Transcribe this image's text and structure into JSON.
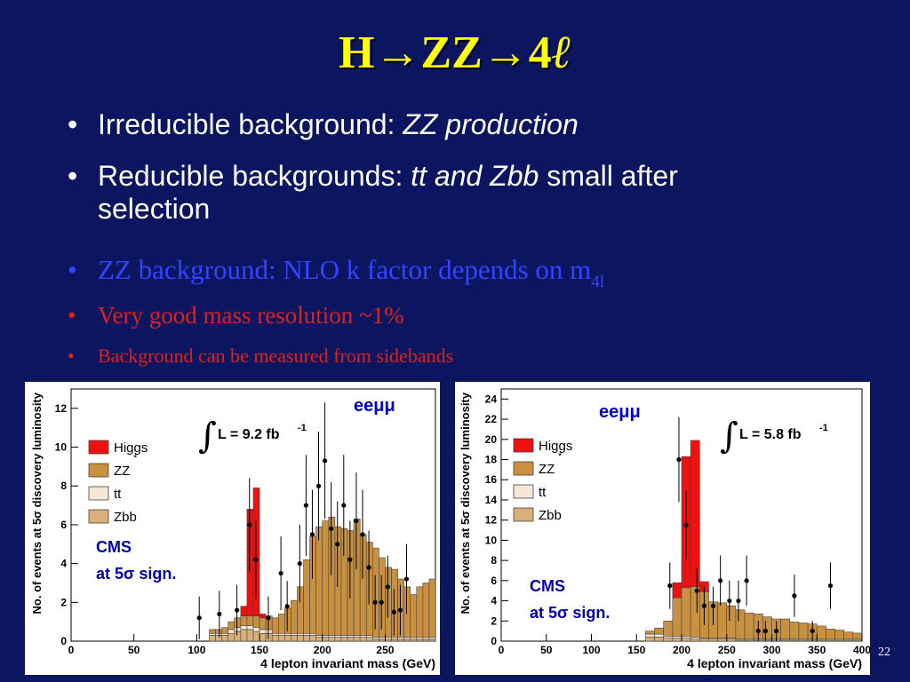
{
  "slide": {
    "title_prefix": "H→ZZ→4",
    "title_ell": "ℓ",
    "bullet_symbol": "•",
    "bullets": [
      {
        "plain": "Irreducible background: ",
        "italic": "ZZ production"
      },
      {
        "plain": "Reducible backgrounds: ",
        "italic": "tt and Zbb",
        "plain2": " small after",
        "line2": "selection"
      },
      {
        "plain": "ZZ background: NLO k factor depends on m",
        "sub": "4l"
      },
      {
        "plain": "Very good mass   resolution ~1%"
      },
      {
        "plain": "Background can be measured from sidebands"
      }
    ],
    "page_number": "22"
  },
  "colors": {
    "background": "#0c1660",
    "title": "#ffff00",
    "higgs": "#ee1111",
    "zz": "#c89142",
    "tt": "#f5e6d6",
    "zbb": "#d9b07a"
  },
  "chart_data": [
    {
      "type": "bar",
      "channel": "eeμμ",
      "lumi": "L = 9.2 fb",
      "lumi_exp": "-1",
      "cms": "CMS",
      "cms2": "at 5σ sign.",
      "xlabel": "4 lepton invariant mass (GeV)",
      "ylabel": "No. of events at 5σ discovery luminosity",
      "xlim": [
        0,
        290
      ],
      "ylim": [
        0,
        13
      ],
      "xticks": [
        0,
        50,
        100,
        150,
        200,
        250
      ],
      "yticks": [
        0,
        2,
        4,
        6,
        8,
        10,
        12
      ],
      "legend": [
        {
          "name": "Higgs",
          "color": "#ee1111"
        },
        {
          "name": "ZZ",
          "sup": "*",
          "color": "#c89142"
        },
        {
          "name": "tt",
          "color": "#f5e6d6"
        },
        {
          "name": "Zbb",
          "color": "#d9b07a"
        }
      ],
      "bin_edges": [
        110,
        115,
        120,
        125,
        130,
        135,
        140,
        145,
        150,
        155,
        160,
        165,
        170,
        175,
        180,
        185,
        190,
        195,
        200,
        205,
        210,
        215,
        220,
        225,
        230,
        235,
        240,
        245,
        250,
        255,
        260,
        265,
        270,
        275,
        280,
        285,
        290
      ],
      "stack": {
        "zbb": [
          0.3,
          0.3,
          0.3,
          0.4,
          0.5,
          0.6,
          0.6,
          0.5,
          0.4,
          0.4,
          0.3,
          0.3,
          0.3,
          0.3,
          0.3,
          0.3,
          0.3,
          0.2,
          0.2,
          0.2,
          0.2,
          0.2,
          0.2,
          0.2,
          0.2,
          0.2,
          0.1,
          0.1,
          0.1,
          0.1,
          0.1,
          0.1,
          0.1,
          0.1,
          0.1,
          0.1
        ],
        "tt": [
          0.1,
          0.1,
          0.1,
          0.2,
          0.2,
          0.2,
          0.2,
          0.2,
          0.2,
          0.2,
          0.1,
          0.1,
          0.1,
          0.1,
          0.1,
          0.1,
          0.1,
          0.1,
          0.1,
          0.1,
          0.1,
          0.1,
          0.1,
          0.1,
          0.1,
          0.1,
          0.1,
          0.1,
          0.1,
          0.1,
          0.1,
          0.1,
          0.1,
          0.1,
          0.1,
          0.1
        ],
        "zz": [
          0.2,
          0.2,
          0.3,
          0.4,
          0.5,
          0.5,
          0.5,
          0.6,
          0.6,
          0.7,
          0.8,
          1.0,
          1.3,
          1.7,
          2.4,
          3.8,
          5.0,
          5.6,
          5.9,
          6.1,
          5.6,
          5.5,
          5.4,
          6.0,
          5.2,
          4.8,
          4.6,
          4.1,
          3.6,
          3.5,
          3.0,
          2.6,
          2.2,
          2.6,
          2.8,
          3.0
        ],
        "higgs": [
          0,
          0,
          0,
          0,
          0,
          0.5,
          5.5,
          6.6,
          0.2,
          0,
          0,
          0,
          0,
          0,
          0,
          0,
          0,
          0,
          0,
          0,
          0,
          0,
          0,
          0,
          0,
          0,
          0,
          0,
          0,
          0,
          0,
          0,
          0,
          0,
          0,
          0
        ]
      },
      "points": [
        {
          "x": 102,
          "y": 1.2,
          "e": 1.1
        },
        {
          "x": 118,
          "y": 1.4,
          "e": 1.2
        },
        {
          "x": 132,
          "y": 1.6,
          "e": 1.3
        },
        {
          "x": 142,
          "y": 6.0,
          "e": 2.4
        },
        {
          "x": 147,
          "y": 4.2,
          "e": 2.0
        },
        {
          "x": 157,
          "y": 1.2,
          "e": 1.1
        },
        {
          "x": 167,
          "y": 3.5,
          "e": 1.9
        },
        {
          "x": 172,
          "y": 1.8,
          "e": 1.3
        },
        {
          "x": 182,
          "y": 4.0,
          "e": 2.0
        },
        {
          "x": 187,
          "y": 7.0,
          "e": 2.6
        },
        {
          "x": 192,
          "y": 5.5,
          "e": 2.3
        },
        {
          "x": 197,
          "y": 8.0,
          "e": 2.8
        },
        {
          "x": 202,
          "y": 9.3,
          "e": 3.0
        },
        {
          "x": 207,
          "y": 5.8,
          "e": 2.4
        },
        {
          "x": 212,
          "y": 5.0,
          "e": 2.2
        },
        {
          "x": 217,
          "y": 7.0,
          "e": 2.6
        },
        {
          "x": 222,
          "y": 4.2,
          "e": 2.0
        },
        {
          "x": 227,
          "y": 6.2,
          "e": 2.5
        },
        {
          "x": 232,
          "y": 5.5,
          "e": 2.3
        },
        {
          "x": 237,
          "y": 3.8,
          "e": 1.9
        },
        {
          "x": 242,
          "y": 2.0,
          "e": 1.4
        },
        {
          "x": 247,
          "y": 2.0,
          "e": 1.4
        },
        {
          "x": 252,
          "y": 2.8,
          "e": 1.6
        },
        {
          "x": 257,
          "y": 1.5,
          "e": 1.2
        },
        {
          "x": 262,
          "y": 1.6,
          "e": 1.3
        },
        {
          "x": 267,
          "y": 3.2,
          "e": 1.8
        }
      ]
    },
    {
      "type": "bar",
      "channel": "eeμμ",
      "lumi": "L = 5.8 fb",
      "lumi_exp": "-1",
      "cms": "CMS",
      "cms2": "at 5σ sign.",
      "xlabel": "4 lepton invariant mass (GeV)",
      "ylabel": "No. of events at 5σ discovery luminosity",
      "xlim": [
        0,
        400
      ],
      "ylim": [
        0,
        25
      ],
      "xticks": [
        0,
        50,
        100,
        150,
        200,
        250,
        300,
        350,
        400
      ],
      "yticks": [
        0,
        2,
        4,
        6,
        8,
        10,
        12,
        14,
        16,
        18,
        20,
        22,
        24
      ],
      "legend": [
        {
          "name": "Higgs",
          "color": "#ee1111"
        },
        {
          "name": "ZZ",
          "sup": "*",
          "color": "#c89142"
        },
        {
          "name": "tt",
          "color": "#f5e6d6"
        },
        {
          "name": "Zbb",
          "color": "#d9b07a"
        }
      ],
      "bin_edges": [
        160,
        170,
        180,
        190,
        200,
        210,
        220,
        230,
        240,
        250,
        260,
        270,
        280,
        290,
        300,
        310,
        320,
        330,
        340,
        350,
        360,
        370,
        380,
        390,
        400
      ],
      "stack": {
        "zbb": [
          0.4,
          0.4,
          0.3,
          0.3,
          0.3,
          0.2,
          0.2,
          0.2,
          0.2,
          0.2,
          0.1,
          0.1,
          0.1,
          0.1,
          0.1,
          0.1,
          0.1,
          0.1,
          0.1,
          0.1,
          0.1,
          0.1,
          0.1,
          0.1
        ],
        "tt": [
          0.3,
          0.3,
          0.2,
          0.2,
          0.2,
          0.2,
          0.1,
          0.1,
          0.1,
          0.1,
          0.1,
          0.1,
          0.1,
          0.1,
          0.1,
          0.1,
          0.1,
          0.1,
          0.1,
          0.1,
          0.1,
          0.1,
          0.1,
          0.1
        ],
        "zz": [
          0.3,
          0.6,
          1.5,
          3.8,
          4.8,
          5.0,
          4.6,
          3.6,
          3.5,
          3.2,
          2.9,
          2.6,
          2.5,
          2.2,
          2.0,
          2.0,
          1.7,
          1.6,
          1.5,
          1.3,
          1.0,
          0.9,
          0.7,
          0.6
        ],
        "higgs": [
          0,
          0,
          0,
          1.5,
          13.0,
          14.5,
          1.0,
          0,
          0,
          0,
          0,
          0,
          0,
          0,
          0,
          0,
          0,
          0,
          0,
          0,
          0,
          0,
          0,
          0
        ]
      },
      "points": [
        {
          "x": 187,
          "y": 5.5,
          "e": 2.3
        },
        {
          "x": 197,
          "y": 18.0,
          "e": 4.2
        },
        {
          "x": 205,
          "y": 11.5,
          "e": 3.4
        },
        {
          "x": 217,
          "y": 5.0,
          "e": 2.2
        },
        {
          "x": 225,
          "y": 3.5,
          "e": 1.9
        },
        {
          "x": 235,
          "y": 3.5,
          "e": 1.9
        },
        {
          "x": 243,
          "y": 6.0,
          "e": 2.5
        },
        {
          "x": 253,
          "y": 4.0,
          "e": 2.0
        },
        {
          "x": 263,
          "y": 4.0,
          "e": 2.0
        },
        {
          "x": 272,
          "y": 6.0,
          "e": 2.5
        },
        {
          "x": 285,
          "y": 1.0,
          "e": 1.0
        },
        {
          "x": 293,
          "y": 1.0,
          "e": 1.0
        },
        {
          "x": 305,
          "y": 1.0,
          "e": 1.0
        },
        {
          "x": 325,
          "y": 4.5,
          "e": 2.1
        },
        {
          "x": 345,
          "y": 1.0,
          "e": 1.0
        },
        {
          "x": 365,
          "y": 5.5,
          "e": 2.3
        }
      ]
    }
  ]
}
